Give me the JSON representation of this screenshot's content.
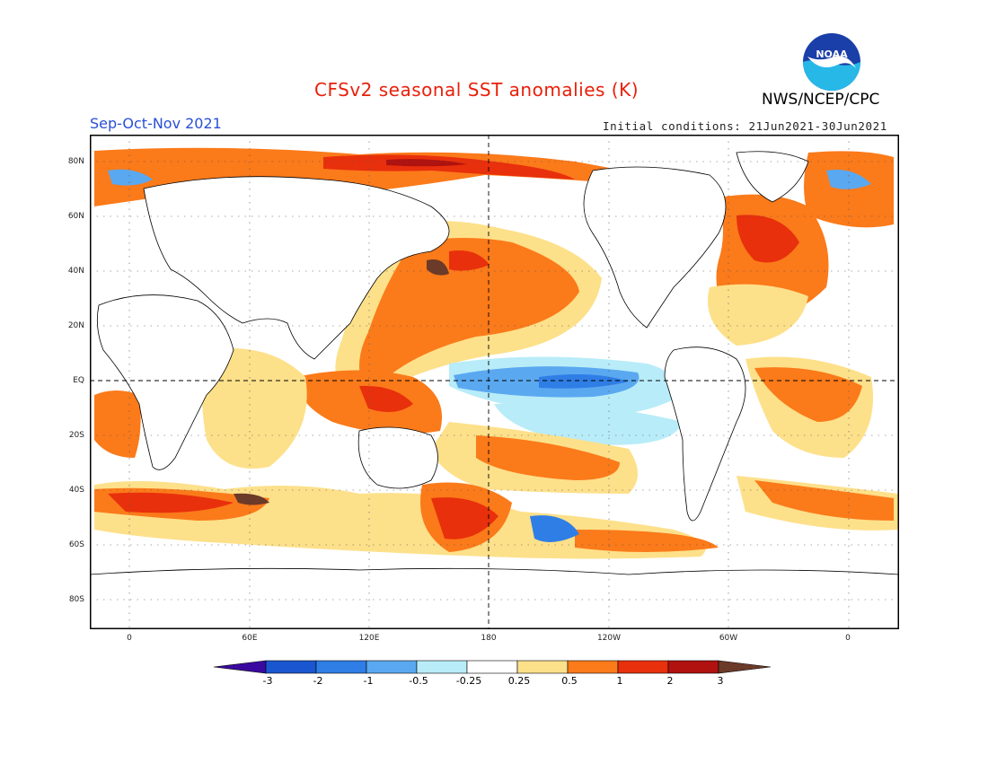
{
  "header": {
    "title": "CFSv2 seasonal SST anomalies (K)",
    "org": "NWS/NCEP/CPC",
    "season": "Sep-Oct-Nov 2021",
    "initial_conditions": "Initial conditions: 21Jun2021-30Jun2021",
    "logo_text": "NOAA"
  },
  "axes": {
    "lat_labels": [
      "80N",
      "60N",
      "40N",
      "20N",
      "EQ",
      "20S",
      "40S",
      "60S",
      "80S"
    ],
    "lon_labels": [
      "0",
      "60E",
      "120E",
      "180",
      "120W",
      "60W",
      "0"
    ]
  },
  "colorbar": {
    "labels": [
      "-3",
      "-2",
      "-1",
      "-0.5",
      "-0.25",
      "0.25",
      "0.5",
      "1",
      "2",
      "3"
    ],
    "colors": [
      "#3a0aa0",
      "#1a56d0",
      "#2f7ee6",
      "#5aa8f0",
      "#b8ecf8",
      "#ffffff",
      "#fde08a",
      "#fb7a1a",
      "#e8300c",
      "#b01210",
      "#6b3a28"
    ]
  },
  "legend_colors": {
    "strong_positive": "#b01210",
    "positive": "#e8300c",
    "moderate_positive": "#fb7a1a",
    "weak_positive": "#fde08a",
    "weak_negative": "#b8ecf8",
    "moderate_negative": "#5aa8f0",
    "negative": "#2f7ee6",
    "extreme": "#6b3a28"
  }
}
